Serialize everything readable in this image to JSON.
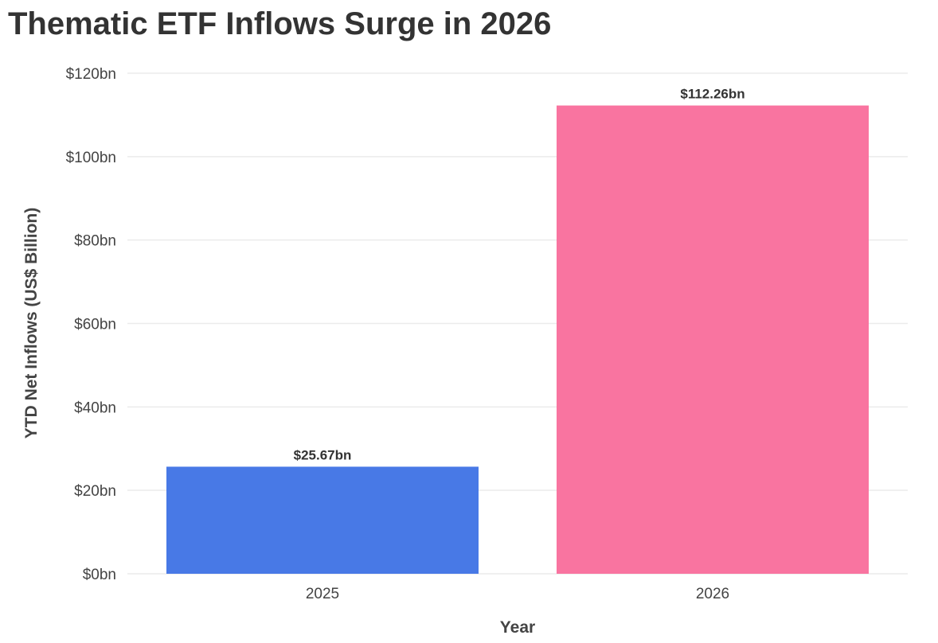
{
  "chart_data": {
    "type": "bar",
    "title": "Thematic ETF Inflows Surge in 2026",
    "xlabel": "Year",
    "ylabel": "YTD Net Inflows (US$ Billion)",
    "categories": [
      "2025",
      "2026"
    ],
    "values": [
      25.67,
      112.26
    ],
    "data_labels": [
      "$25.67bn",
      "$112.26bn"
    ],
    "bar_colors": [
      "#4879e6",
      "#f974a0"
    ],
    "ylim": [
      0,
      120
    ],
    "y_ticks": [
      0,
      20,
      40,
      60,
      80,
      100,
      120
    ],
    "y_tick_labels": [
      "$0bn",
      "$20bn",
      "$40bn",
      "$60bn",
      "$80bn",
      "$100bn",
      "$120bn"
    ],
    "grid": true,
    "legend": "none"
  }
}
